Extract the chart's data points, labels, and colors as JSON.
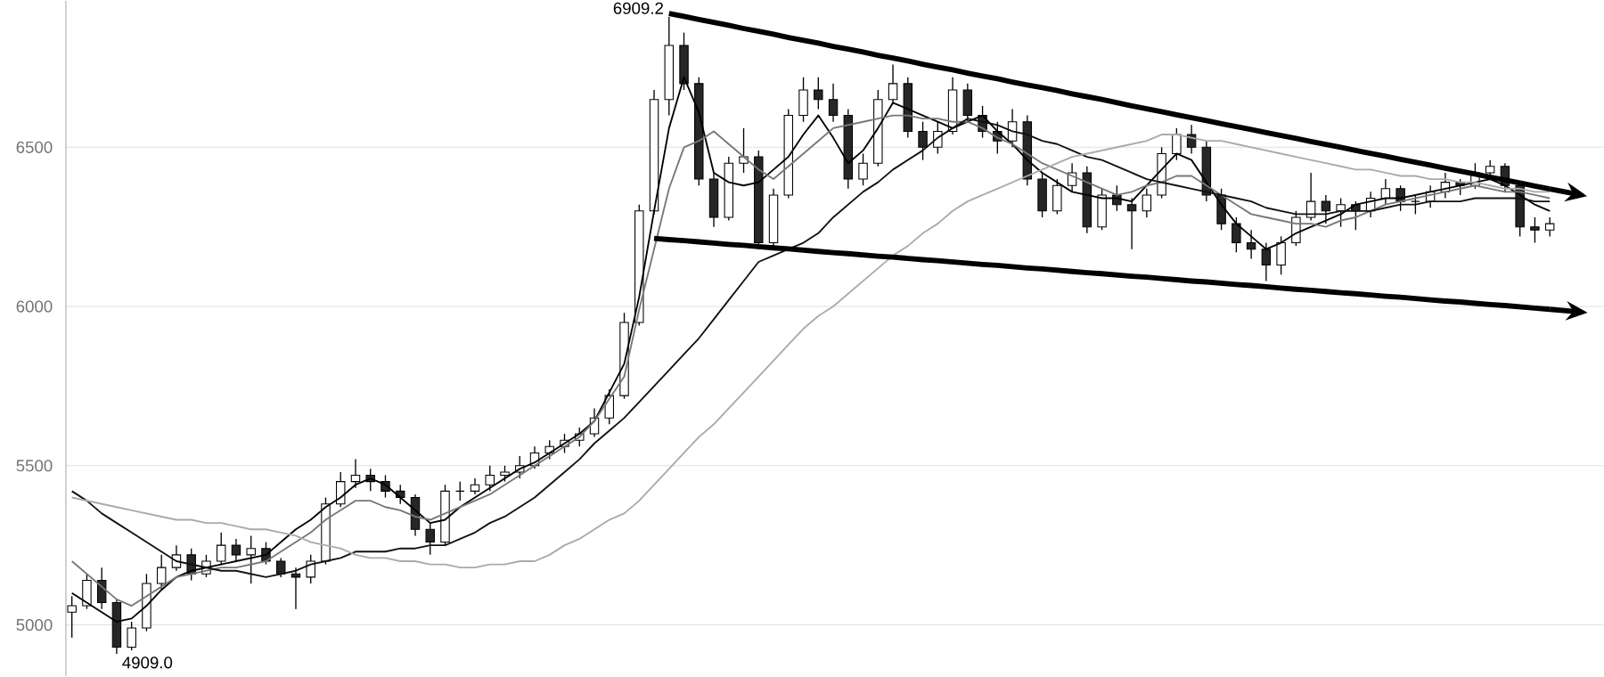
{
  "chart_data": {
    "type": "candlestick",
    "categories": [
      null,
      null,
      null,
      null,
      null,
      null,
      null,
      null,
      null,
      null,
      null,
      null,
      null,
      null,
      null,
      null,
      null,
      null,
      null,
      null,
      null,
      null,
      null,
      null,
      null,
      null,
      null,
      null,
      null,
      null,
      null,
      null,
      null,
      null,
      null,
      null,
      null,
      null,
      null,
      null,
      null,
      null,
      null,
      null,
      null,
      null,
      null,
      null,
      null,
      null,
      null,
      null,
      null,
      null,
      null,
      null,
      null,
      null,
      null,
      null,
      null,
      null,
      null,
      null,
      null,
      null,
      null,
      null,
      null,
      null,
      null,
      null,
      null,
      null,
      null,
      null,
      null,
      null,
      null,
      null,
      null,
      null,
      null,
      null,
      null,
      null,
      null,
      null,
      null,
      null,
      null,
      null,
      null,
      null,
      null,
      null,
      null,
      null,
      null,
      null
    ],
    "ohlc": [
      [
        5040,
        5090,
        4960,
        5060
      ],
      [
        5060,
        5160,
        5050,
        5140
      ],
      [
        5140,
        5180,
        5050,
        5070
      ],
      [
        5070,
        5080,
        4909.0,
        4930
      ],
      [
        4930,
        5010,
        4920,
        4990
      ],
      [
        4990,
        5160,
        4980,
        5130
      ],
      [
        5130,
        5220,
        5110,
        5180
      ],
      [
        5180,
        5250,
        5170,
        5220
      ],
      [
        5220,
        5240,
        5140,
        5160
      ],
      [
        5160,
        5220,
        5150,
        5200
      ],
      [
        5200,
        5290,
        5190,
        5250
      ],
      [
        5250,
        5270,
        5200,
        5220
      ],
      [
        5220,
        5280,
        5130,
        5240
      ],
      [
        5240,
        5260,
        5190,
        5200
      ],
      [
        5200,
        5210,
        5150,
        5160
      ],
      [
        5160,
        5180,
        5050,
        5150
      ],
      [
        5150,
        5220,
        5130,
        5200
      ],
      [
        5200,
        5400,
        5190,
        5380
      ],
      [
        5380,
        5480,
        5370,
        5450
      ],
      [
        5450,
        5520,
        5430,
        5470
      ],
      [
        5470,
        5490,
        5420,
        5450
      ],
      [
        5450,
        5470,
        5400,
        5420
      ],
      [
        5420,
        5440,
        5380,
        5400
      ],
      [
        5400,
        5410,
        5280,
        5300
      ],
      [
        5300,
        5320,
        5220,
        5260
      ],
      [
        5260,
        5440,
        5250,
        5420
      ],
      [
        5420,
        5450,
        5390,
        5420
      ],
      [
        5420,
        5460,
        5410,
        5440
      ],
      [
        5440,
        5500,
        5420,
        5470
      ],
      [
        5470,
        5500,
        5450,
        5480
      ],
      [
        5480,
        5530,
        5460,
        5500
      ],
      [
        5500,
        5560,
        5490,
        5540
      ],
      [
        5540,
        5580,
        5520,
        5560
      ],
      [
        5560,
        5600,
        5540,
        5580
      ],
      [
        5580,
        5620,
        5560,
        5600
      ],
      [
        5600,
        5680,
        5590,
        5650
      ],
      [
        5650,
        5740,
        5630,
        5720
      ],
      [
        5720,
        5980,
        5710,
        5950
      ],
      [
        5950,
        6320,
        5940,
        6300
      ],
      [
        6300,
        6680,
        6290,
        6650
      ],
      [
        6650,
        6909.2,
        6600,
        6820
      ],
      [
        6820,
        6860,
        6680,
        6700
      ],
      [
        6700,
        6720,
        6380,
        6400
      ],
      [
        6400,
        6420,
        6250,
        6280
      ],
      [
        6280,
        6470,
        6270,
        6450
      ],
      [
        6450,
        6560,
        6420,
        6470
      ],
      [
        6470,
        6490,
        6180,
        6200
      ],
      [
        6200,
        6370,
        6180,
        6350
      ],
      [
        6350,
        6620,
        6340,
        6600
      ],
      [
        6600,
        6720,
        6580,
        6680
      ],
      [
        6680,
        6720,
        6620,
        6650
      ],
      [
        6650,
        6700,
        6580,
        6600
      ],
      [
        6600,
        6620,
        6370,
        6400
      ],
      [
        6400,
        6480,
        6380,
        6450
      ],
      [
        6450,
        6680,
        6440,
        6650
      ],
      [
        6650,
        6760,
        6640,
        6700
      ],
      [
        6700,
        6720,
        6530,
        6550
      ],
      [
        6550,
        6580,
        6460,
        6500
      ],
      [
        6500,
        6580,
        6480,
        6550
      ],
      [
        6550,
        6720,
        6540,
        6680
      ],
      [
        6680,
        6700,
        6580,
        6600
      ],
      [
        6600,
        6630,
        6530,
        6550
      ],
      [
        6550,
        6580,
        6480,
        6520
      ],
      [
        6520,
        6620,
        6500,
        6580
      ],
      [
        6580,
        6600,
        6380,
        6400
      ],
      [
        6400,
        6420,
        6280,
        6300
      ],
      [
        6300,
        6400,
        6290,
        6380
      ],
      [
        6380,
        6450,
        6360,
        6420
      ],
      [
        6420,
        6440,
        6230,
        6250
      ],
      [
        6250,
        6370,
        6240,
        6350
      ],
      [
        6350,
        6380,
        6300,
        6320
      ],
      [
        6320,
        6340,
        6180,
        6300
      ],
      [
        6300,
        6370,
        6280,
        6350
      ],
      [
        6350,
        6500,
        6340,
        6480
      ],
      [
        6480,
        6560,
        6460,
        6540
      ],
      [
        6540,
        6570,
        6480,
        6500
      ],
      [
        6500,
        6520,
        6330,
        6350
      ],
      [
        6350,
        6370,
        6240,
        6260
      ],
      [
        6260,
        6280,
        6170,
        6200
      ],
      [
        6200,
        6240,
        6150,
        6180
      ],
      [
        6180,
        6200,
        6080,
        6130
      ],
      [
        6130,
        6220,
        6100,
        6200
      ],
      [
        6200,
        6300,
        6190,
        6280
      ],
      [
        6280,
        6420,
        6270,
        6330
      ],
      [
        6330,
        6350,
        6260,
        6300
      ],
      [
        6300,
        6340,
        6250,
        6320
      ],
      [
        6320,
        6330,
        6240,
        6300
      ],
      [
        6300,
        6360,
        6280,
        6340
      ],
      [
        6340,
        6400,
        6320,
        6370
      ],
      [
        6370,
        6380,
        6300,
        6330
      ],
      [
        6330,
        6350,
        6290,
        6330
      ],
      [
        6330,
        6380,
        6310,
        6360
      ],
      [
        6360,
        6420,
        6340,
        6390
      ],
      [
        6390,
        6400,
        6350,
        6380
      ],
      [
        6380,
        6450,
        6370,
        6420
      ],
      [
        6420,
        6460,
        6400,
        6440
      ],
      [
        6440,
        6450,
        6360,
        6380
      ],
      [
        6380,
        6390,
        6220,
        6250
      ],
      [
        6250,
        6280,
        6200,
        6240
      ],
      [
        6240,
        6280,
        6220,
        6260
      ]
    ],
    "series": [
      {
        "type": "line",
        "color": "#000000",
        "values": [
          5100,
          5070,
          5040,
          5010,
          5020,
          5060,
          5110,
          5150,
          5170,
          5180,
          5190,
          5200,
          5210,
          5220,
          5260,
          5300,
          5330,
          5370,
          5400,
          5440,
          5460,
          5440,
          5400,
          5360,
          5320,
          5330,
          5370,
          5400,
          5430,
          5460,
          5490,
          5510,
          5540,
          5570,
          5600,
          5640,
          5730,
          5820,
          6030,
          6300,
          6560,
          6720,
          6610,
          6420,
          6390,
          6380,
          6390,
          6430,
          6470,
          6540,
          6600,
          6530,
          6450,
          6490,
          6560,
          6640,
          6620,
          6600,
          6580,
          6560,
          6580,
          6600,
          6550,
          6510,
          6460,
          6420,
          6390,
          6360,
          6350,
          6340,
          6340,
          6330,
          6380,
          6430,
          6480,
          6460,
          6390,
          6320,
          6260,
          6220,
          6180,
          6200,
          6230,
          6250,
          6270,
          6290,
          6320,
          6330,
          6340,
          6340,
          6350,
          6360,
          6370,
          6380,
          6390,
          6400,
          6380,
          6350,
          6320,
          6300
        ]
      },
      {
        "type": "line",
        "color": "#777777",
        "values": [
          5200,
          5160,
          5120,
          5080,
          5060,
          5090,
          5120,
          5150,
          5160,
          5170,
          5180,
          5180,
          5190,
          5200,
          5230,
          5260,
          5290,
          5330,
          5360,
          5390,
          5390,
          5370,
          5360,
          5340,
          5330,
          5350,
          5370,
          5390,
          5410,
          5440,
          5470,
          5500,
          5530,
          5560,
          5590,
          5640,
          5710,
          5780,
          5990,
          6180,
          6370,
          6500,
          6520,
          6550,
          6510,
          6470,
          6430,
          6400,
          6440,
          6480,
          6520,
          6560,
          6570,
          6580,
          6590,
          6600,
          6600,
          6590,
          6590,
          6580,
          6580,
          6560,
          6530,
          6510,
          6480,
          6450,
          6430,
          6410,
          6390,
          6370,
          6350,
          6360,
          6380,
          6390,
          6410,
          6410,
          6380,
          6350,
          6320,
          6290,
          6280,
          6270,
          6260,
          6260,
          6250,
          6270,
          6280,
          6300,
          6320,
          6330,
          6340,
          6350,
          6360,
          6370,
          6380,
          6370,
          6360,
          6360,
          6350,
          6340
        ]
      },
      {
        "type": "line",
        "color": "#111111",
        "values": [
          5420,
          5390,
          5350,
          5320,
          5290,
          5260,
          5230,
          5200,
          5190,
          5180,
          5170,
          5170,
          5160,
          5150,
          5160,
          5170,
          5190,
          5200,
          5210,
          5230,
          5230,
          5230,
          5240,
          5240,
          5250,
          5250,
          5270,
          5290,
          5320,
          5340,
          5370,
          5400,
          5440,
          5480,
          5520,
          5570,
          5610,
          5650,
          5700,
          5750,
          5800,
          5850,
          5900,
          5960,
          6020,
          6080,
          6140,
          6160,
          6180,
          6200,
          6230,
          6280,
          6320,
          6360,
          6390,
          6430,
          6460,
          6490,
          6530,
          6560,
          6590,
          6580,
          6570,
          6550,
          6540,
          6520,
          6510,
          6490,
          6470,
          6460,
          6440,
          6420,
          6400,
          6390,
          6380,
          6370,
          6360,
          6350,
          6340,
          6330,
          6310,
          6300,
          6290,
          6290,
          6290,
          6300,
          6300,
          6300,
          6310,
          6320,
          6320,
          6330,
          6330,
          6330,
          6340,
          6340,
          6340,
          6340,
          6330,
          6330
        ]
      },
      {
        "type": "line",
        "color": "#aaaaaa",
        "values": [
          5400,
          5390,
          5380,
          5370,
          5360,
          5350,
          5340,
          5330,
          5330,
          5320,
          5320,
          5310,
          5300,
          5300,
          5290,
          5280,
          5260,
          5250,
          5240,
          5220,
          5210,
          5210,
          5200,
          5200,
          5190,
          5190,
          5180,
          5180,
          5190,
          5190,
          5200,
          5200,
          5220,
          5250,
          5270,
          5300,
          5330,
          5350,
          5390,
          5440,
          5490,
          5540,
          5590,
          5630,
          5680,
          5730,
          5780,
          5830,
          5880,
          5930,
          5970,
          6000,
          6040,
          6080,
          6120,
          6160,
          6190,
          6230,
          6260,
          6300,
          6330,
          6350,
          6370,
          6390,
          6410,
          6430,
          6450,
          6470,
          6480,
          6490,
          6500,
          6510,
          6520,
          6540,
          6540,
          6530,
          6520,
          6520,
          6510,
          6500,
          6490,
          6480,
          6470,
          6460,
          6450,
          6440,
          6430,
          6430,
          6420,
          6410,
          6410,
          6400,
          6400,
          6390,
          6390,
          6380,
          6370,
          6370,
          6360,
          6360
        ]
      },
      {
        "type": "line",
        "color": "#000000",
        "values": [
          null,
          null,
          null,
          null,
          null,
          null,
          null,
          null,
          null,
          null,
          null,
          null,
          null,
          null,
          null,
          null,
          null,
          null,
          null,
          null,
          null,
          null,
          null,
          null,
          null,
          null,
          null,
          null,
          null,
          null,
          null,
          null,
          null,
          null,
          null,
          null,
          null,
          null,
          null,
          null,
          6920,
          6911,
          6901,
          6892,
          6883,
          6873,
          6864,
          6855,
          6845,
          6836,
          6827,
          6817,
          6808,
          6799,
          6789,
          6780,
          6771,
          6761,
          6752,
          6743,
          6733,
          6724,
          6715,
          6705,
          6696,
          6687,
          6678,
          6668,
          6659,
          6650,
          6640,
          6630,
          6621,
          6612,
          6602,
          6593,
          6584,
          6574,
          6565,
          6556,
          6546,
          6537,
          6528,
          6518,
          6509,
          6500,
          6490,
          6481,
          6472,
          6462,
          6453,
          6444,
          6434,
          6425,
          6416,
          6406,
          6397,
          6388,
          6378,
          6369
        ]
      },
      {
        "type": "line",
        "color": "#000000",
        "values": [
          null,
          null,
          null,
          null,
          null,
          null,
          null,
          null,
          null,
          null,
          null,
          null,
          null,
          null,
          null,
          null,
          null,
          null,
          null,
          null,
          null,
          null,
          null,
          null,
          null,
          null,
          null,
          null,
          null,
          null,
          null,
          null,
          null,
          null,
          null,
          null,
          null,
          null,
          null,
          6214,
          6210,
          6207,
          6203,
          6199,
          6195,
          6192,
          6188,
          6184,
          6181,
          6177,
          6173,
          6169,
          6166,
          6162,
          6158,
          6155,
          6151,
          6147,
          6144,
          6140,
          6136,
          6132,
          6129,
          6125,
          6121,
          6118,
          6114,
          6110,
          6106,
          6103,
          6099,
          6095,
          6092,
          6088,
          6084,
          6080,
          6077,
          6073,
          6069,
          6066,
          6062,
          6058,
          6054,
          6051,
          6047,
          6043,
          6040,
          6036,
          6032,
          6029,
          6025,
          6021,
          6017,
          6014,
          6010,
          6006,
          6003,
          5999,
          5995,
          5991
        ]
      }
    ],
    "ylim": [
      4840,
      6960
    ],
    "yticks": [
      5000,
      5500,
      6000,
      6500
    ],
    "grid": "y",
    "tick_labels": "y",
    "annotations": [
      "6909.2",
      "4909.0"
    ]
  }
}
